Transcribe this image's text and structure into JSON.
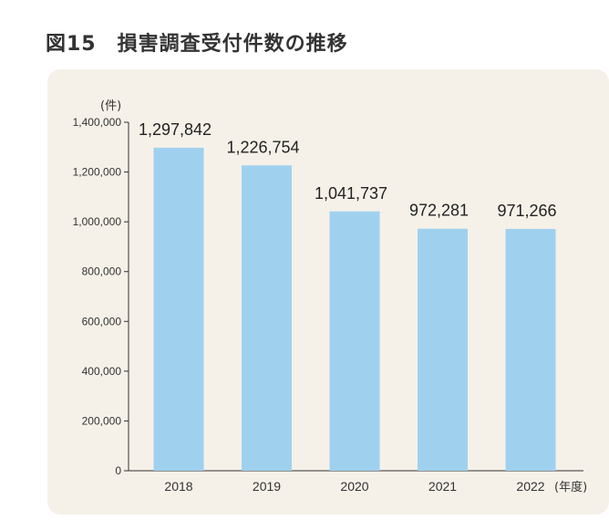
{
  "figure": {
    "title": "図15　損害調査受付件数の推移"
  },
  "chart_data": {
    "type": "bar",
    "title": "図15　損害調査受付件数の推移",
    "ylabel": "(件)",
    "xlabel": "(年度)",
    "categories": [
      "2018",
      "2019",
      "2020",
      "2021",
      "2022"
    ],
    "values": [
      1297842,
      1226754,
      1041737,
      972281,
      971266
    ],
    "value_labels": [
      "1,297,842",
      "1,226,754",
      "1,041,737",
      "972,281",
      "971,266"
    ],
    "yticks": [
      0,
      200000,
      400000,
      600000,
      800000,
      1000000,
      1200000,
      1400000
    ],
    "ytick_labels": [
      "0",
      "200,000",
      "400,000",
      "600,000",
      "800,000",
      "1,000,000",
      "1,200,000",
      "1,400,000"
    ],
    "ylim": [
      0,
      1400000
    ],
    "grid": false,
    "legend": "none",
    "colors": {
      "bar": "#9fd1ef",
      "panel": "#f5f1e8",
      "axis": "#333333"
    }
  }
}
